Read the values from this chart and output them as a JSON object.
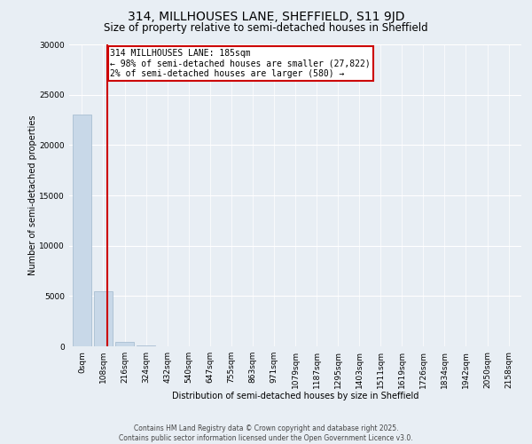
{
  "title": "314, MILLHOUSES LANE, SHEFFIELD, S11 9JD",
  "subtitle": "Size of property relative to semi-detached houses in Sheffield",
  "xlabel": "Distribution of semi-detached houses by size in Sheffield",
  "ylabel": "Number of semi-detached properties",
  "bar_labels": [
    "0sqm",
    "108sqm",
    "216sqm",
    "324sqm",
    "432sqm",
    "540sqm",
    "647sqm",
    "755sqm",
    "863sqm",
    "971sqm",
    "1079sqm",
    "1187sqm",
    "1295sqm",
    "1403sqm",
    "1511sqm",
    "1619sqm",
    "1726sqm",
    "1834sqm",
    "1942sqm",
    "2050sqm",
    "2158sqm"
  ],
  "bar_values": [
    23000,
    5500,
    400,
    50,
    10,
    5,
    2,
    1,
    1,
    1,
    1,
    0,
    0,
    0,
    0,
    0,
    0,
    0,
    0,
    0,
    0
  ],
  "bar_color": "#c8d8e8",
  "bar_edge_color": "#a0b8cc",
  "property_size": 185,
  "vline_color": "#cc0000",
  "ylim": [
    0,
    30000
  ],
  "yticks": [
    0,
    5000,
    10000,
    15000,
    20000,
    25000,
    30000
  ],
  "annotation_title": "314 MILLHOUSES LANE: 185sqm",
  "annotation_line1": "← 98% of semi-detached houses are smaller (27,822)",
  "annotation_line2": "2% of semi-detached houses are larger (580) →",
  "annotation_box_color": "#cc0000",
  "background_color": "#e8eef4",
  "footer_line1": "Contains HM Land Registry data © Crown copyright and database right 2025.",
  "footer_line2": "Contains public sector information licensed under the Open Government Licence v3.0.",
  "title_fontsize": 10,
  "subtitle_fontsize": 8.5,
  "axis_label_fontsize": 7,
  "tick_fontsize": 6.5,
  "annotation_fontsize": 7
}
